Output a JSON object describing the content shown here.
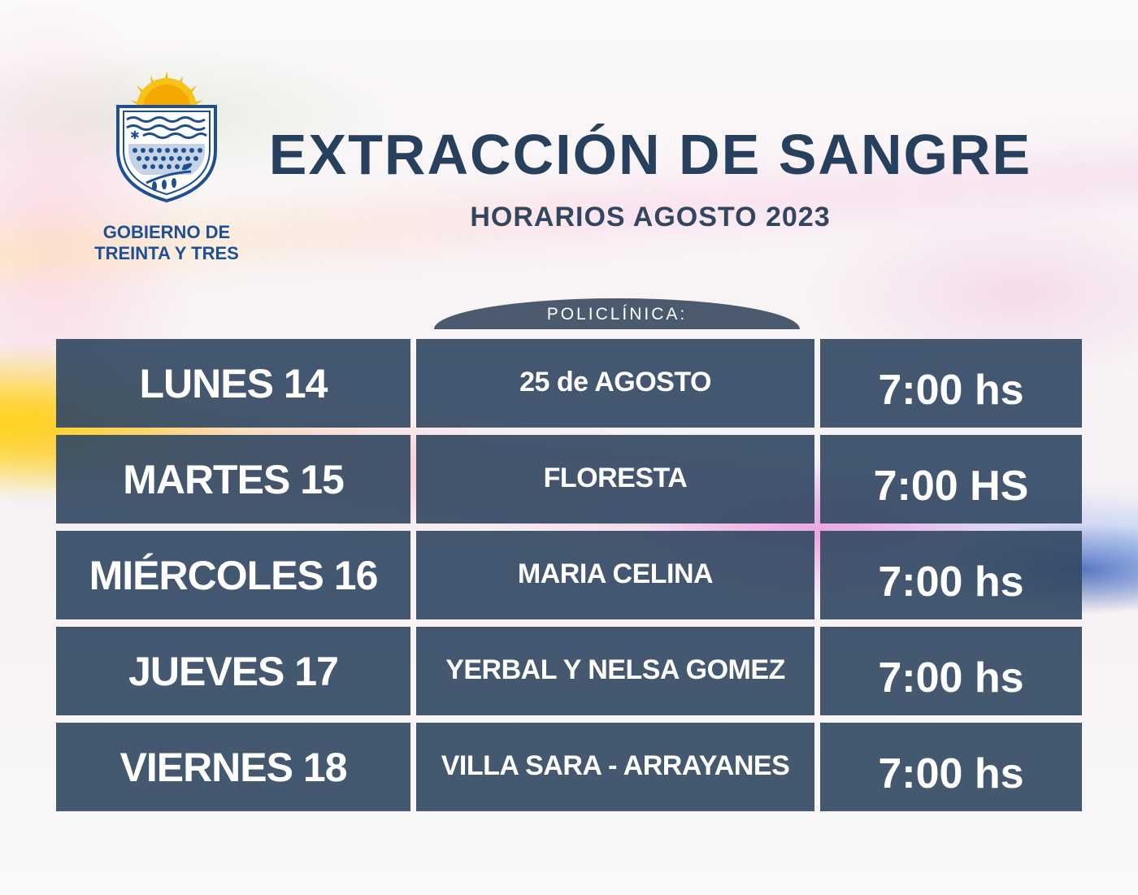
{
  "logo": {
    "line1": "GOBIERNO DE",
    "line2": "TREINTA Y TRES",
    "icon": "coat-of-arms-sun-shield"
  },
  "header": {
    "title": "EXTRACCIÓN DE SANGRE",
    "subtitle": "HORARIOS AGOSTO 2023"
  },
  "table": {
    "column_label": "POLICLÍNICA:",
    "rows": [
      {
        "day": "LUNES 14",
        "place": "25 de AGOSTO",
        "time": "7:00 hs"
      },
      {
        "day": "MARTES 15",
        "place": "FLORESTA",
        "time": "7:00 HS"
      },
      {
        "day": "MIÉRCOLES 16",
        "place": "MARIA CELINA",
        "time": "7:00 hs"
      },
      {
        "day": "JUEVES 17",
        "place": "YERBAL Y NELSA GOMEZ",
        "time": "7:00 hs"
      },
      {
        "day": "VIERNES 18",
        "place": "VILLA SARA - ARRAYANES",
        "time": "7:00 hs"
      }
    ]
  },
  "colors": {
    "cell_bg": "#344a64",
    "title": "#26405e",
    "logo_blue": "#1d4f94",
    "sun": "#f5b800"
  }
}
